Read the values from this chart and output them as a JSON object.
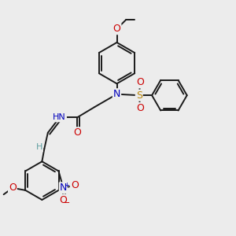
{
  "bg_color": "#ececec",
  "bond_color": "#1a1a1a",
  "bond_width": 1.4,
  "ring_r": 0.088,
  "ring2_r": 0.075,
  "ring3_r": 0.082,
  "colors": {
    "O": "#cc0000",
    "N": "#0000bb",
    "S": "#b8860b",
    "H": "#5f9ea0",
    "C": "#1a1a1a"
  }
}
